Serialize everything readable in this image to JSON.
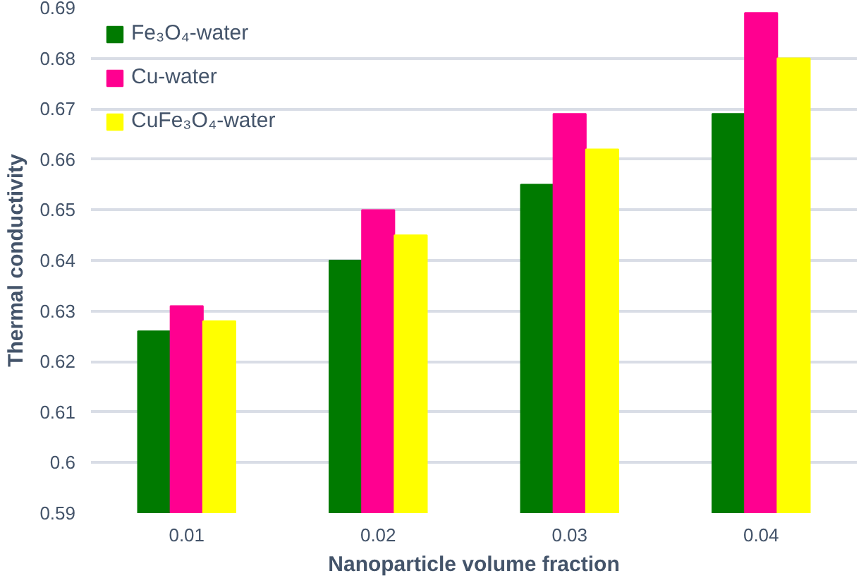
{
  "chart_data": {
    "type": "bar",
    "xlabel": "Nanoparticle volume fraction",
    "ylabel": "Thermal conductivity",
    "categories": [
      "0.01",
      "0.02",
      "0.03",
      "0.04"
    ],
    "series": [
      {
        "name": "Fe₃O₄-water",
        "color": "#007a00",
        "values": [
          0.626,
          0.64,
          0.655,
          0.669
        ]
      },
      {
        "name": "Cu-water",
        "color": "#ff0090",
        "values": [
          0.631,
          0.65,
          0.669,
          0.689
        ]
      },
      {
        "name": "CuFe₃O₄-water",
        "color": "#ffff00",
        "values": [
          0.628,
          0.645,
          0.662,
          0.68
        ]
      }
    ],
    "ylim": [
      0.59,
      0.69
    ],
    "yticks": [
      0.59,
      0.6,
      0.61,
      0.62,
      0.63,
      0.64,
      0.65,
      0.66,
      0.67,
      0.68,
      0.69
    ],
    "grid": "y",
    "legend": "top left"
  }
}
